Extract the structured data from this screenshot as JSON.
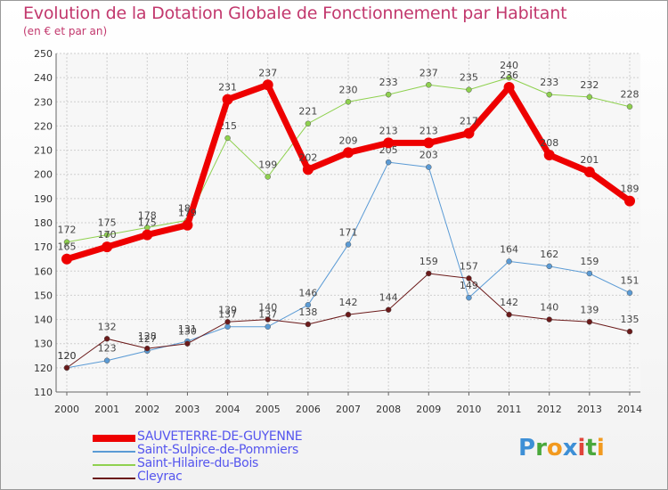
{
  "title": "Evolution de la Dotation Globale de Fonctionnement par Habitant",
  "subtitle": "(en € et par an)",
  "logo": {
    "letters": [
      "P",
      "r",
      "o",
      "x",
      "i",
      "t",
      "i"
    ],
    "colors": [
      "#3d8fd6",
      "#4aa83c",
      "#f29a1f",
      "#3d8fd6",
      "#e0443a",
      "#4aa83c",
      "#f29a1f"
    ]
  },
  "chart_data": {
    "type": "line",
    "x": [
      2000,
      2001,
      2002,
      2003,
      2004,
      2005,
      2006,
      2007,
      2008,
      2009,
      2010,
      2011,
      2012,
      2013,
      2014
    ],
    "ylim": [
      110,
      250
    ],
    "yticks": [
      110,
      120,
      130,
      140,
      150,
      160,
      170,
      180,
      190,
      200,
      210,
      220,
      230,
      240,
      250
    ],
    "grid": true,
    "legend_position": "bottom-left",
    "series": [
      {
        "name": "Saint-Hilaire-du-Bois",
        "color": "#8fd14f",
        "width": 1,
        "marker": 3,
        "values": [
          172,
          175,
          178,
          181,
          215,
          199,
          221,
          230,
          233,
          237,
          235,
          240,
          233,
          232,
          228
        ]
      },
      {
        "name": "Saint-Sulpice-de-Pommiers",
        "color": "#5b9bd5",
        "width": 1,
        "marker": 3,
        "values": [
          120,
          123,
          127,
          131,
          137,
          137,
          146,
          171,
          205,
          203,
          149,
          164,
          162,
          159,
          151
        ]
      },
      {
        "name": "Cleyrac",
        "color": "#6b1a1a",
        "width": 1,
        "marker": 3,
        "values": [
          120,
          132,
          128,
          130,
          139,
          140,
          138,
          142,
          144,
          159,
          157,
          142,
          140,
          139,
          135
        ]
      },
      {
        "name": "SAUVETERRE-DE-GUYENNE",
        "color": "#ee0000",
        "width": 7,
        "marker": 6,
        "values": [
          165,
          170,
          175,
          179,
          231,
          237,
          202,
          209,
          213,
          213,
          217,
          236,
          208,
          201,
          189
        ]
      }
    ],
    "legend_order": [
      "SAUVETERRE-DE-GUYENNE",
      "Saint-Sulpice-de-Pommiers",
      "Saint-Hilaire-du-Bois",
      "Cleyrac"
    ]
  }
}
